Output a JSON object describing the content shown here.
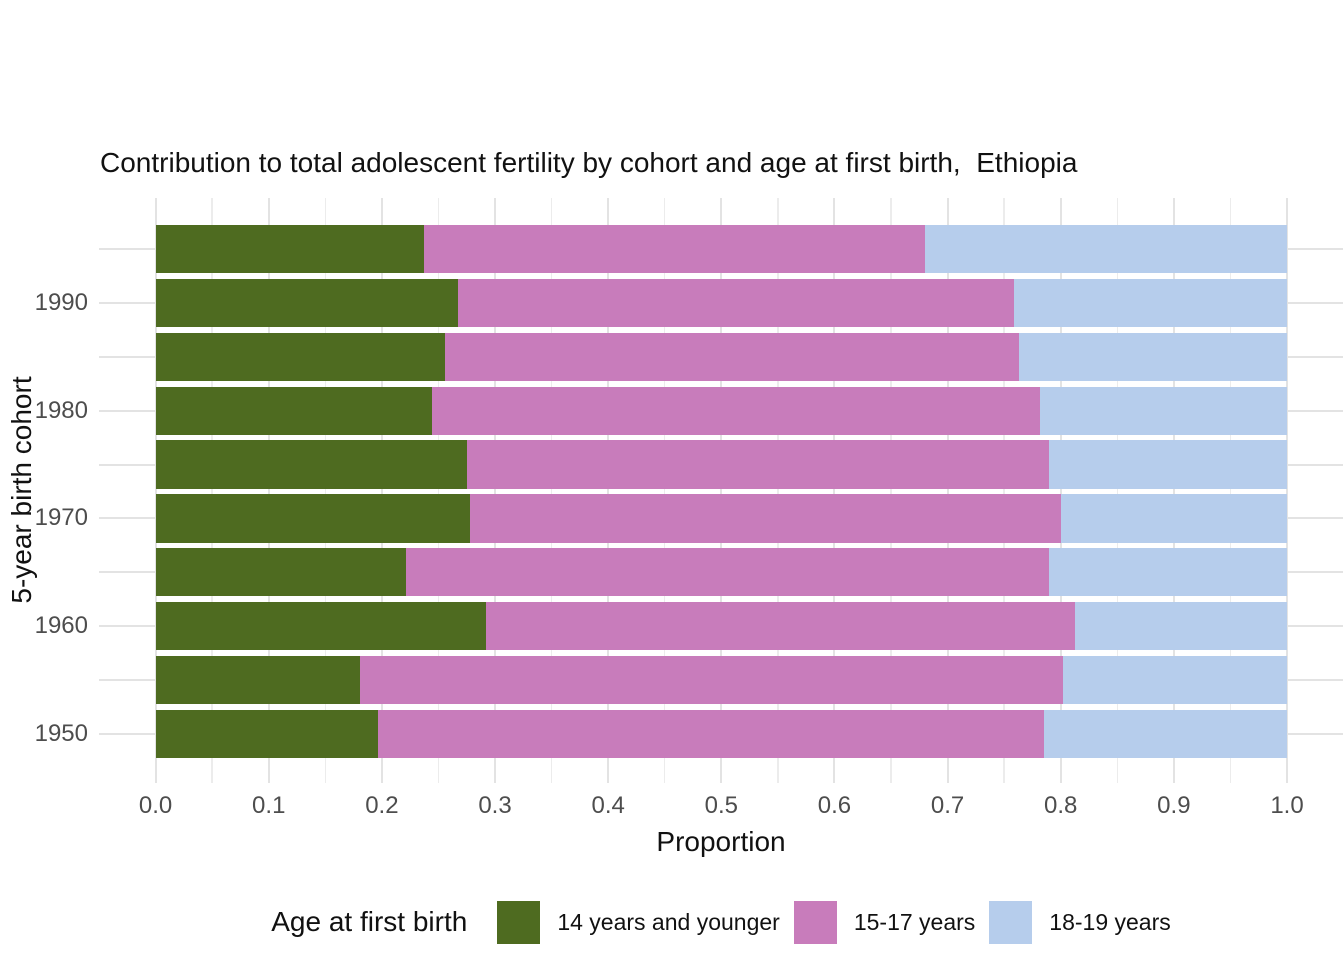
{
  "title": "Contribution to total adolescent fertility by cohort and age at first birth,  Ethiopia",
  "axes": {
    "x_label": "Proportion",
    "y_label": "5-year birth cohort",
    "x_tick_labels": [
      "0.0",
      "0.1",
      "0.2",
      "0.3",
      "0.4",
      "0.5",
      "0.6",
      "0.7",
      "0.8",
      "0.9",
      "1.0"
    ],
    "y_tick_labels": [
      "1990",
      "1980",
      "1970",
      "1960",
      "1950"
    ]
  },
  "legend": {
    "title": "Age at first birth",
    "items": [
      {
        "label": "14 years and younger",
        "color": "#4e6b20"
      },
      {
        "label": "15-17 years",
        "color": "#c87cbb"
      },
      {
        "label": "18-19 years",
        "color": "#b6cdec"
      }
    ]
  },
  "colors": {
    "green_14_and_younger": "#4e6b20",
    "pink_15_17": "#c87cbb",
    "blue_18_19": "#b6cdec",
    "grid_major": "#e3e3e3",
    "grid_minor": "#ececec",
    "tick_text": "#4d4d4d",
    "title_text": "#111111"
  },
  "chart_data": {
    "type": "bar",
    "orientation": "horizontal",
    "stacked": true,
    "title": "Contribution to total adolescent fertility by cohort and age at first birth,  Ethiopia",
    "xlabel": "Proportion",
    "ylabel": "5-year birth cohort",
    "xlim": [
      0.0,
      1.0
    ],
    "x_ticks": [
      0.0,
      0.1,
      0.2,
      0.3,
      0.4,
      0.5,
      0.6,
      0.7,
      0.8,
      0.9,
      1.0
    ],
    "grid": true,
    "grid_minor_step": 0.05,
    "legend_title": "Age at first birth",
    "legend_position": "bottom",
    "bar_count": 10,
    "row_tick_labels_top_to_bottom": [
      "",
      "1990",
      "",
      "1980",
      "",
      "1970",
      "",
      "1960",
      "",
      "1950"
    ],
    "series": [
      {
        "name": "14 years and younger",
        "color": "#4e6b20",
        "values": [
          0.237,
          0.267,
          0.256,
          0.244,
          0.275,
          0.278,
          0.221,
          0.292,
          0.181,
          0.197
        ]
      },
      {
        "name": "15-17 years",
        "color": "#c87cbb",
        "values": [
          0.443,
          0.492,
          0.507,
          0.538,
          0.515,
          0.522,
          0.569,
          0.521,
          0.621,
          0.588
        ]
      },
      {
        "name": "18-19 years",
        "color": "#b6cdec",
        "values": [
          0.32,
          0.241,
          0.237,
          0.218,
          0.21,
          0.2,
          0.21,
          0.187,
          0.198,
          0.215
        ]
      }
    ]
  }
}
